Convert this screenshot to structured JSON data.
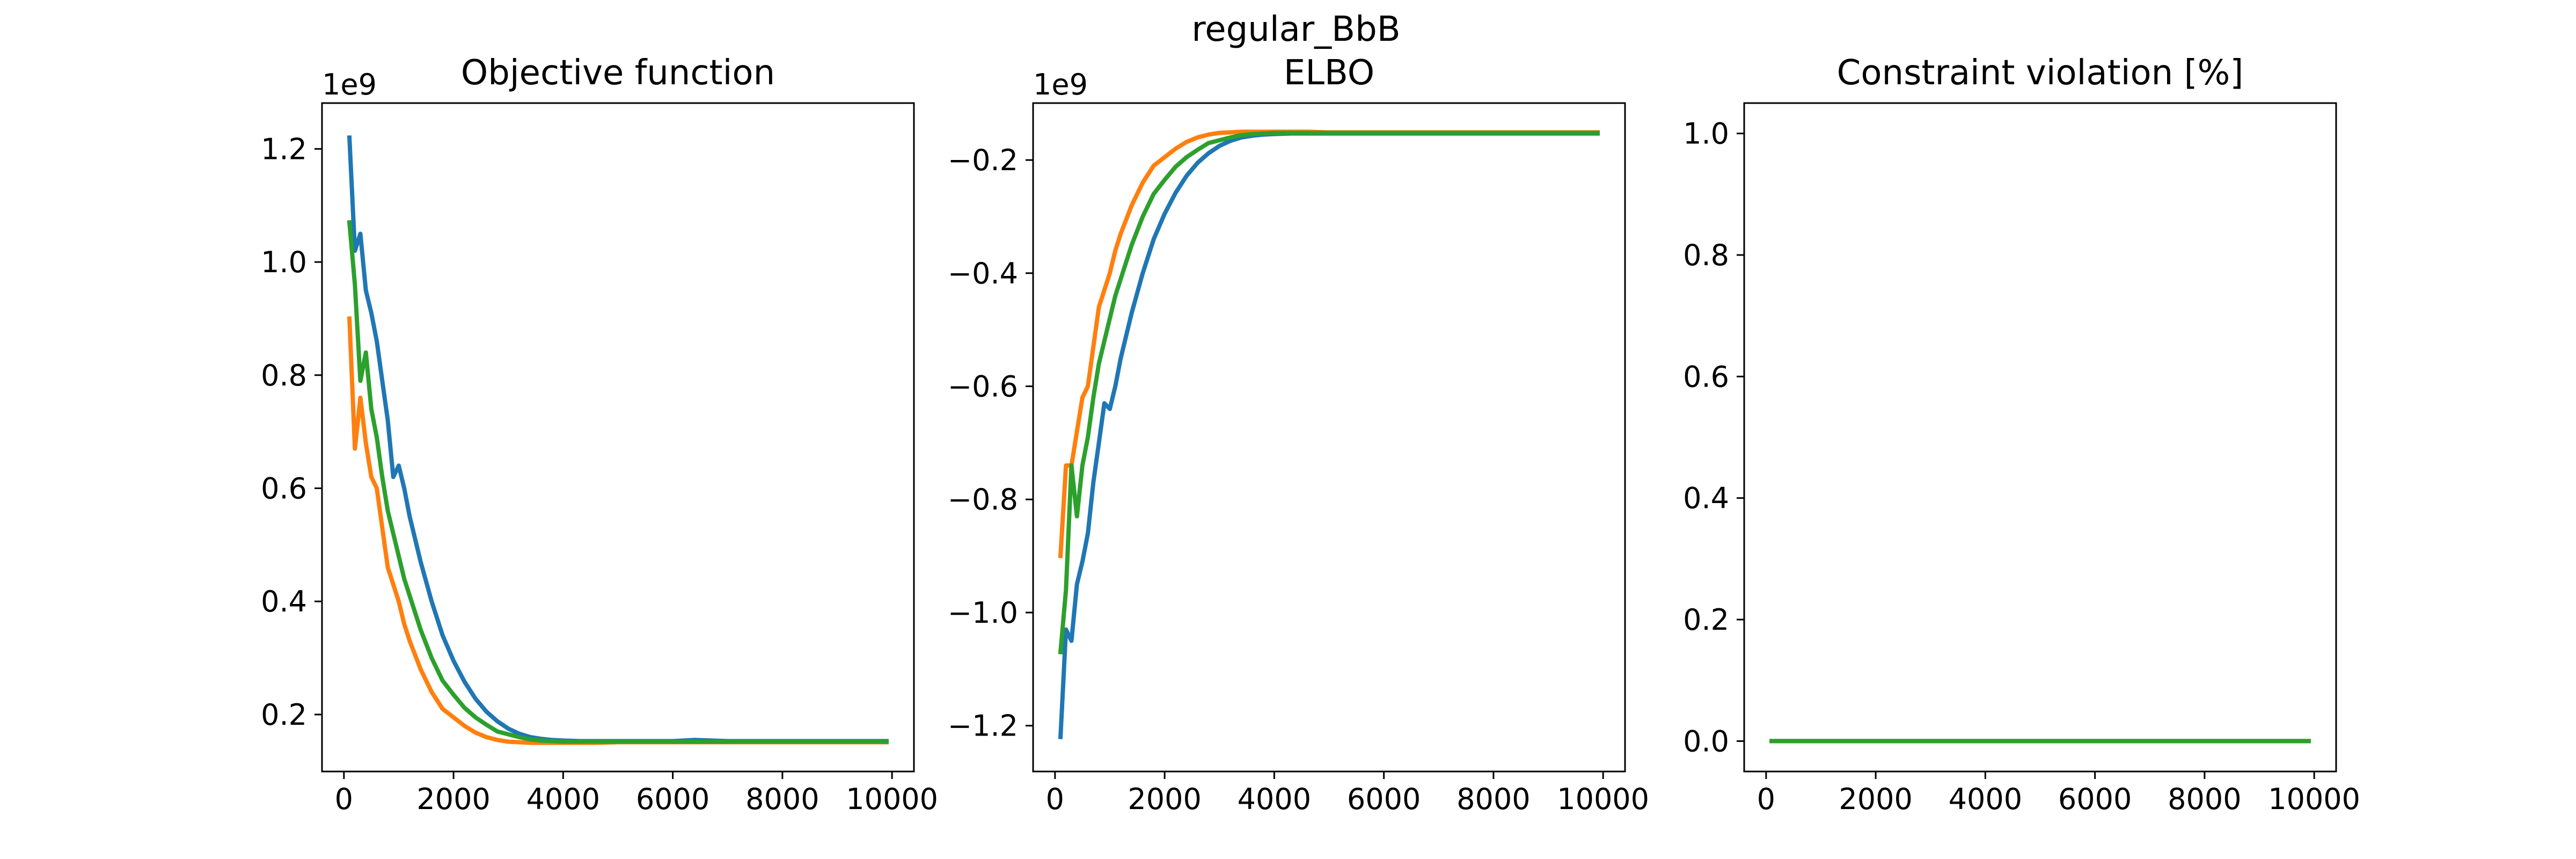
{
  "figure": {
    "suptitle": "regular_BbB"
  },
  "colors": {
    "blue": "#1f77b4",
    "orange": "#ff7f0e",
    "green": "#2ca02c"
  },
  "chart_data": [
    {
      "type": "line",
      "title": "Objective function",
      "xlabel": "",
      "ylabel": "",
      "offset_text": "1e9",
      "grid": false,
      "xlim": [
        -400,
        10400
      ],
      "ylim": [
        0.0993,
        1.281
      ],
      "xticks": [
        0,
        2000,
        4000,
        6000,
        8000,
        10000
      ],
      "xtick_labels": [
        "0",
        "2000",
        "4000",
        "6000",
        "8000",
        "10000"
      ],
      "yticks": [
        0.2,
        0.4,
        0.6,
        0.8,
        1.0,
        1.2
      ],
      "ytick_labels": [
        "0.2",
        "0.4",
        "0.6",
        "0.8",
        "1.0",
        "1.2"
      ],
      "series": [
        {
          "color": "#1f77b4",
          "x": [
            100,
            200,
            300,
            400,
            500,
            600,
            700,
            800,
            900,
            1000,
            1100,
            1200,
            1400,
            1600,
            1800,
            2000,
            2200,
            2400,
            2600,
            2800,
            3000,
            3200,
            3400,
            3600,
            3800,
            4000,
            4300,
            4600,
            5000,
            5500,
            6000,
            6400,
            7000,
            8000,
            9000,
            9900
          ],
          "y": [
            1.22,
            1.02,
            1.05,
            0.95,
            0.91,
            0.86,
            0.79,
            0.72,
            0.62,
            0.64,
            0.6,
            0.55,
            0.47,
            0.4,
            0.34,
            0.295,
            0.258,
            0.228,
            0.205,
            0.188,
            0.175,
            0.166,
            0.16,
            0.157,
            0.155,
            0.154,
            0.153,
            0.153,
            0.153,
            0.153,
            0.153,
            0.155,
            0.153,
            0.153,
            0.153,
            0.153
          ]
        },
        {
          "color": "#ff7f0e",
          "x": [
            100,
            200,
            300,
            400,
            500,
            600,
            700,
            800,
            900,
            1000,
            1100,
            1200,
            1400,
            1600,
            1800,
            2000,
            2200,
            2400,
            2600,
            2800,
            3000,
            3200,
            3400,
            3600,
            3800,
            4000,
            4300,
            4600,
            5000,
            6000,
            7000,
            8000,
            9000,
            9900
          ],
          "y": [
            0.9,
            0.67,
            0.76,
            0.68,
            0.62,
            0.6,
            0.53,
            0.46,
            0.43,
            0.4,
            0.36,
            0.33,
            0.28,
            0.24,
            0.21,
            0.195,
            0.18,
            0.168,
            0.16,
            0.155,
            0.152,
            0.151,
            0.15,
            0.15,
            0.15,
            0.15,
            0.15,
            0.15,
            0.151,
            0.151,
            0.151,
            0.151,
            0.151,
            0.151
          ]
        },
        {
          "color": "#2ca02c",
          "x": [
            100,
            200,
            300,
            400,
            500,
            600,
            700,
            800,
            900,
            1000,
            1100,
            1200,
            1400,
            1600,
            1800,
            2000,
            2200,
            2400,
            2600,
            2800,
            3000,
            3200,
            3400,
            3600,
            3800,
            4000,
            4300,
            4600,
            5000,
            6000,
            7000,
            8000,
            9000,
            9900
          ],
          "y": [
            1.07,
            0.96,
            0.79,
            0.84,
            0.74,
            0.69,
            0.62,
            0.56,
            0.52,
            0.48,
            0.44,
            0.41,
            0.35,
            0.3,
            0.26,
            0.235,
            0.212,
            0.195,
            0.182,
            0.17,
            0.165,
            0.16,
            0.156,
            0.154,
            0.153,
            0.152,
            0.152,
            0.152,
            0.152,
            0.152,
            0.152,
            0.152,
            0.152,
            0.152
          ]
        }
      ]
    },
    {
      "type": "line",
      "title": "ELBO",
      "xlabel": "",
      "ylabel": "",
      "offset_text": "1e9",
      "grid": false,
      "xlim": [
        -400,
        10400
      ],
      "ylim": [
        -1.281,
        -0.0993
      ],
      "xticks": [
        0,
        2000,
        4000,
        6000,
        8000,
        10000
      ],
      "xtick_labels": [
        "0",
        "2000",
        "4000",
        "6000",
        "8000",
        "10000"
      ],
      "yticks": [
        -1.2,
        -1.0,
        -0.8,
        -0.6,
        -0.4,
        -0.2
      ],
      "ytick_labels": [
        "−1.2",
        "−1.0",
        "−0.8",
        "−0.6",
        "−0.4",
        "−0.2"
      ],
      "series": [
        {
          "color": "#1f77b4",
          "x": [
            100,
            200,
            300,
            400,
            500,
            600,
            700,
            800,
            900,
            1000,
            1100,
            1200,
            1400,
            1600,
            1800,
            2000,
            2200,
            2400,
            2600,
            2800,
            3000,
            3200,
            3400,
            3600,
            3800,
            4000,
            4300,
            4600,
            5000,
            5500,
            6000,
            7000,
            8000,
            9000,
            9900
          ],
          "y": [
            -1.22,
            -1.03,
            -1.05,
            -0.95,
            -0.91,
            -0.86,
            -0.77,
            -0.7,
            -0.63,
            -0.64,
            -0.6,
            -0.55,
            -0.47,
            -0.4,
            -0.34,
            -0.295,
            -0.258,
            -0.228,
            -0.205,
            -0.188,
            -0.175,
            -0.166,
            -0.16,
            -0.157,
            -0.155,
            -0.154,
            -0.153,
            -0.153,
            -0.153,
            -0.153,
            -0.153,
            -0.153,
            -0.153,
            -0.153,
            -0.153
          ]
        },
        {
          "color": "#ff7f0e",
          "x": [
            100,
            200,
            300,
            400,
            500,
            600,
            700,
            800,
            900,
            1000,
            1100,
            1200,
            1400,
            1600,
            1800,
            2000,
            2200,
            2400,
            2600,
            2800,
            3000,
            3200,
            3400,
            3600,
            3800,
            4000,
            4300,
            4600,
            5000,
            6000,
            7000,
            8000,
            9000,
            9900
          ],
          "y": [
            -0.9,
            -0.74,
            -0.74,
            -0.68,
            -0.62,
            -0.6,
            -0.53,
            -0.46,
            -0.43,
            -0.4,
            -0.36,
            -0.33,
            -0.28,
            -0.24,
            -0.21,
            -0.195,
            -0.18,
            -0.168,
            -0.16,
            -0.155,
            -0.152,
            -0.151,
            -0.15,
            -0.15,
            -0.15,
            -0.15,
            -0.15,
            -0.15,
            -0.151,
            -0.151,
            -0.151,
            -0.151,
            -0.151,
            -0.151
          ]
        },
        {
          "color": "#2ca02c",
          "x": [
            100,
            200,
            300,
            400,
            500,
            600,
            700,
            800,
            900,
            1000,
            1100,
            1200,
            1400,
            1600,
            1800,
            2000,
            2200,
            2400,
            2600,
            2800,
            3000,
            3200,
            3400,
            3600,
            3800,
            4000,
            4300,
            4600,
            5000,
            6000,
            7000,
            8000,
            9000,
            9900
          ],
          "y": [
            -1.07,
            -0.96,
            -0.74,
            -0.83,
            -0.74,
            -0.69,
            -0.62,
            -0.56,
            -0.52,
            -0.48,
            -0.44,
            -0.41,
            -0.35,
            -0.3,
            -0.26,
            -0.235,
            -0.212,
            -0.195,
            -0.182,
            -0.17,
            -0.165,
            -0.16,
            -0.156,
            -0.154,
            -0.153,
            -0.152,
            -0.152,
            -0.152,
            -0.152,
            -0.152,
            -0.152,
            -0.152,
            -0.152,
            -0.152
          ]
        }
      ]
    },
    {
      "type": "line",
      "title": "Constraint violation [%]",
      "xlabel": "",
      "ylabel": "",
      "offset_text": "",
      "grid": false,
      "xlim": [
        -400,
        10400
      ],
      "ylim": [
        -0.05,
        1.05
      ],
      "xticks": [
        0,
        2000,
        4000,
        6000,
        8000,
        10000
      ],
      "xtick_labels": [
        "0",
        "2000",
        "4000",
        "6000",
        "8000",
        "10000"
      ],
      "yticks": [
        0.0,
        0.2,
        0.4,
        0.6,
        0.8,
        1.0
      ],
      "ytick_labels": [
        "0.0",
        "0.2",
        "0.4",
        "0.6",
        "0.8",
        "1.0"
      ],
      "series": [
        {
          "color": "#1f77b4",
          "x": [
            100,
            9900
          ],
          "y": [
            0,
            0
          ]
        },
        {
          "color": "#ff7f0e",
          "x": [
            100,
            9900
          ],
          "y": [
            0,
            0
          ]
        },
        {
          "color": "#2ca02c",
          "x": [
            100,
            9900
          ],
          "y": [
            0,
            0
          ]
        }
      ]
    }
  ]
}
